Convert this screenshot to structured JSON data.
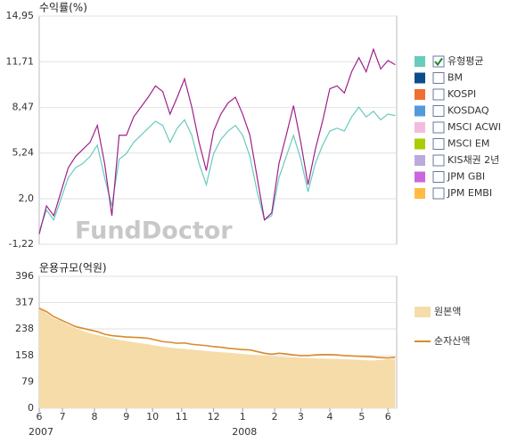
{
  "chart_data": [
    {
      "type": "line",
      "title": "수익률(%)",
      "watermark": "FundDoctor",
      "xlim": [
        0,
        12.3
      ],
      "x": [
        0,
        0.25,
        0.5,
        0.75,
        1,
        1.25,
        1.5,
        1.75,
        2,
        2.25,
        2.5,
        2.75,
        3,
        3.25,
        3.5,
        3.75,
        4,
        4.25,
        4.5,
        4.75,
        5,
        5.25,
        5.5,
        5.75,
        6,
        6.25,
        6.5,
        6.75,
        7,
        7.25,
        7.5,
        7.75,
        8,
        8.25,
        8.5,
        8.75,
        9,
        9.25,
        9.5,
        9.75,
        10,
        10.25,
        10.5,
        10.75,
        11,
        11.25,
        11.5,
        11.75,
        12,
        12.25
      ],
      "ylim": [
        -1.22,
        14.95
      ],
      "yticks": [
        {
          "value": 14.95,
          "label": "14,95"
        },
        {
          "value": 11.71,
          "label": "11,71"
        },
        {
          "value": 8.47,
          "label": "8,47"
        },
        {
          "value": 5.24,
          "label": "5,24"
        },
        {
          "value": 2.0,
          "label": "2,0"
        },
        {
          "value": -1.22,
          "label": "-1,22"
        }
      ],
      "grid": true,
      "series": [
        {
          "color": "#a0208c",
          "values": [
            -0.5,
            1.5,
            0.8,
            2.5,
            4.2,
            5.0,
            5.5,
            6.0,
            7.2,
            4.5,
            0.8,
            6.5,
            6.5,
            7.8,
            8.5,
            9.2,
            10.0,
            9.6,
            8.0,
            9.2,
            10.5,
            8.5,
            6.0,
            4.0,
            6.8,
            8.0,
            8.8,
            9.2,
            8.0,
            6.5,
            3.5,
            0.5,
            1.0,
            4.5,
            6.5,
            8.6,
            6.0,
            3.0,
            5.5,
            7.5,
            9.8,
            10.0,
            9.5,
            11.0,
            12.0,
            11.0,
            12.6,
            11.2,
            11.8,
            11.5
          ]
        },
        {
          "name": "유형평균",
          "color": "#66ccbb",
          "checked": true,
          "values": [
            -0.3,
            1.2,
            0.5,
            2.0,
            3.5,
            4.2,
            4.5,
            5.0,
            5.8,
            3.5,
            1.5,
            4.8,
            5.2,
            6.0,
            6.5,
            7.0,
            7.5,
            7.2,
            6.0,
            7.0,
            7.6,
            6.5,
            4.5,
            3.0,
            5.2,
            6.2,
            6.8,
            7.2,
            6.5,
            5.0,
            2.5,
            0.5,
            0.8,
            3.5,
            5.0,
            6.5,
            4.8,
            2.5,
            4.5,
            5.8,
            6.8,
            7.0,
            6.8,
            7.8,
            8.5,
            7.8,
            8.2,
            7.6,
            8.0,
            7.9
          ]
        },
        {
          "name": "BM",
          "color": "#0a4c8c",
          "checked": false
        },
        {
          "name": "KOSPI",
          "color": "#f07030",
          "checked": false
        },
        {
          "name": "KOSDAQ",
          "color": "#5599dd",
          "checked": false
        },
        {
          "name": "MSCI ACWI",
          "color": "#f4bbdd",
          "checked": false
        },
        {
          "name": "MSCI EM",
          "color": "#aacc00",
          "checked": false
        },
        {
          "name": "KIS채권 2년",
          "color": "#bbaadd",
          "checked": false
        },
        {
          "name": "JPM GBI",
          "color": "#cc66dd",
          "checked": false
        },
        {
          "name": "JPM EMBI",
          "color": "#ffbb44",
          "checked": false
        }
      ]
    },
    {
      "type": "area-line",
      "title": "운용규모(억원)",
      "xlim": [
        0,
        12.3
      ],
      "x": [
        0,
        0.25,
        0.5,
        0.75,
        1,
        1.25,
        1.5,
        1.75,
        2,
        2.25,
        2.5,
        2.75,
        3,
        3.25,
        3.5,
        3.75,
        4,
        4.25,
        4.5,
        4.75,
        5,
        5.25,
        5.5,
        5.75,
        6,
        6.25,
        6.5,
        6.75,
        7,
        7.25,
        7.5,
        7.75,
        8,
        8.25,
        8.5,
        8.75,
        9,
        9.25,
        9.5,
        9.75,
        10,
        10.25,
        10.5,
        10.75,
        11,
        11.25,
        11.5,
        11.75,
        12,
        12.25
      ],
      "xticks": [
        {
          "value": 0,
          "label": "6"
        },
        {
          "value": 0.8,
          "label": "7"
        },
        {
          "value": 1.9,
          "label": "8"
        },
        {
          "value": 3,
          "label": "9"
        },
        {
          "value": 3.9,
          "label": "10"
        },
        {
          "value": 4.9,
          "label": "11"
        },
        {
          "value": 6,
          "label": "12"
        },
        {
          "value": 7,
          "label": "1"
        },
        {
          "value": 8.1,
          "label": "2"
        },
        {
          "value": 9,
          "label": "3"
        },
        {
          "value": 10,
          "label": "4"
        },
        {
          "value": 11.1,
          "label": "5"
        },
        {
          "value": 12,
          "label": "6"
        }
      ],
      "years": [
        {
          "value": 0,
          "label": "2007"
        },
        {
          "value": 7,
          "label": "2008"
        }
      ],
      "ylim": [
        0,
        396
      ],
      "yticks": [
        396,
        317,
        238,
        158,
        79,
        0
      ],
      "grid": true,
      "series": [
        {
          "name": "원본액",
          "kind": "area",
          "color": "#f5dca8",
          "values": [
            300,
            285,
            270,
            262,
            250,
            240,
            232,
            225,
            220,
            215,
            210,
            205,
            202,
            198,
            195,
            192,
            188,
            185,
            182,
            180,
            178,
            176,
            174,
            172,
            170,
            168,
            167,
            165,
            163,
            161,
            160,
            158,
            156,
            155,
            154,
            153,
            152,
            151,
            150,
            149,
            148,
            148,
            147,
            146,
            145,
            144,
            143,
            145,
            147,
            148
          ]
        },
        {
          "name": "순자산액",
          "kind": "line",
          "color": "#d98a2a",
          "values": [
            300,
            290,
            275,
            265,
            255,
            245,
            240,
            235,
            230,
            222,
            218,
            216,
            214,
            213,
            212,
            210,
            205,
            200,
            198,
            195,
            196,
            192,
            190,
            188,
            185,
            183,
            180,
            178,
            176,
            175,
            170,
            165,
            162,
            165,
            163,
            160,
            158,
            158,
            160,
            161,
            161,
            160,
            158,
            157,
            156,
            155,
            154,
            152,
            151,
            153
          ]
        }
      ]
    }
  ]
}
